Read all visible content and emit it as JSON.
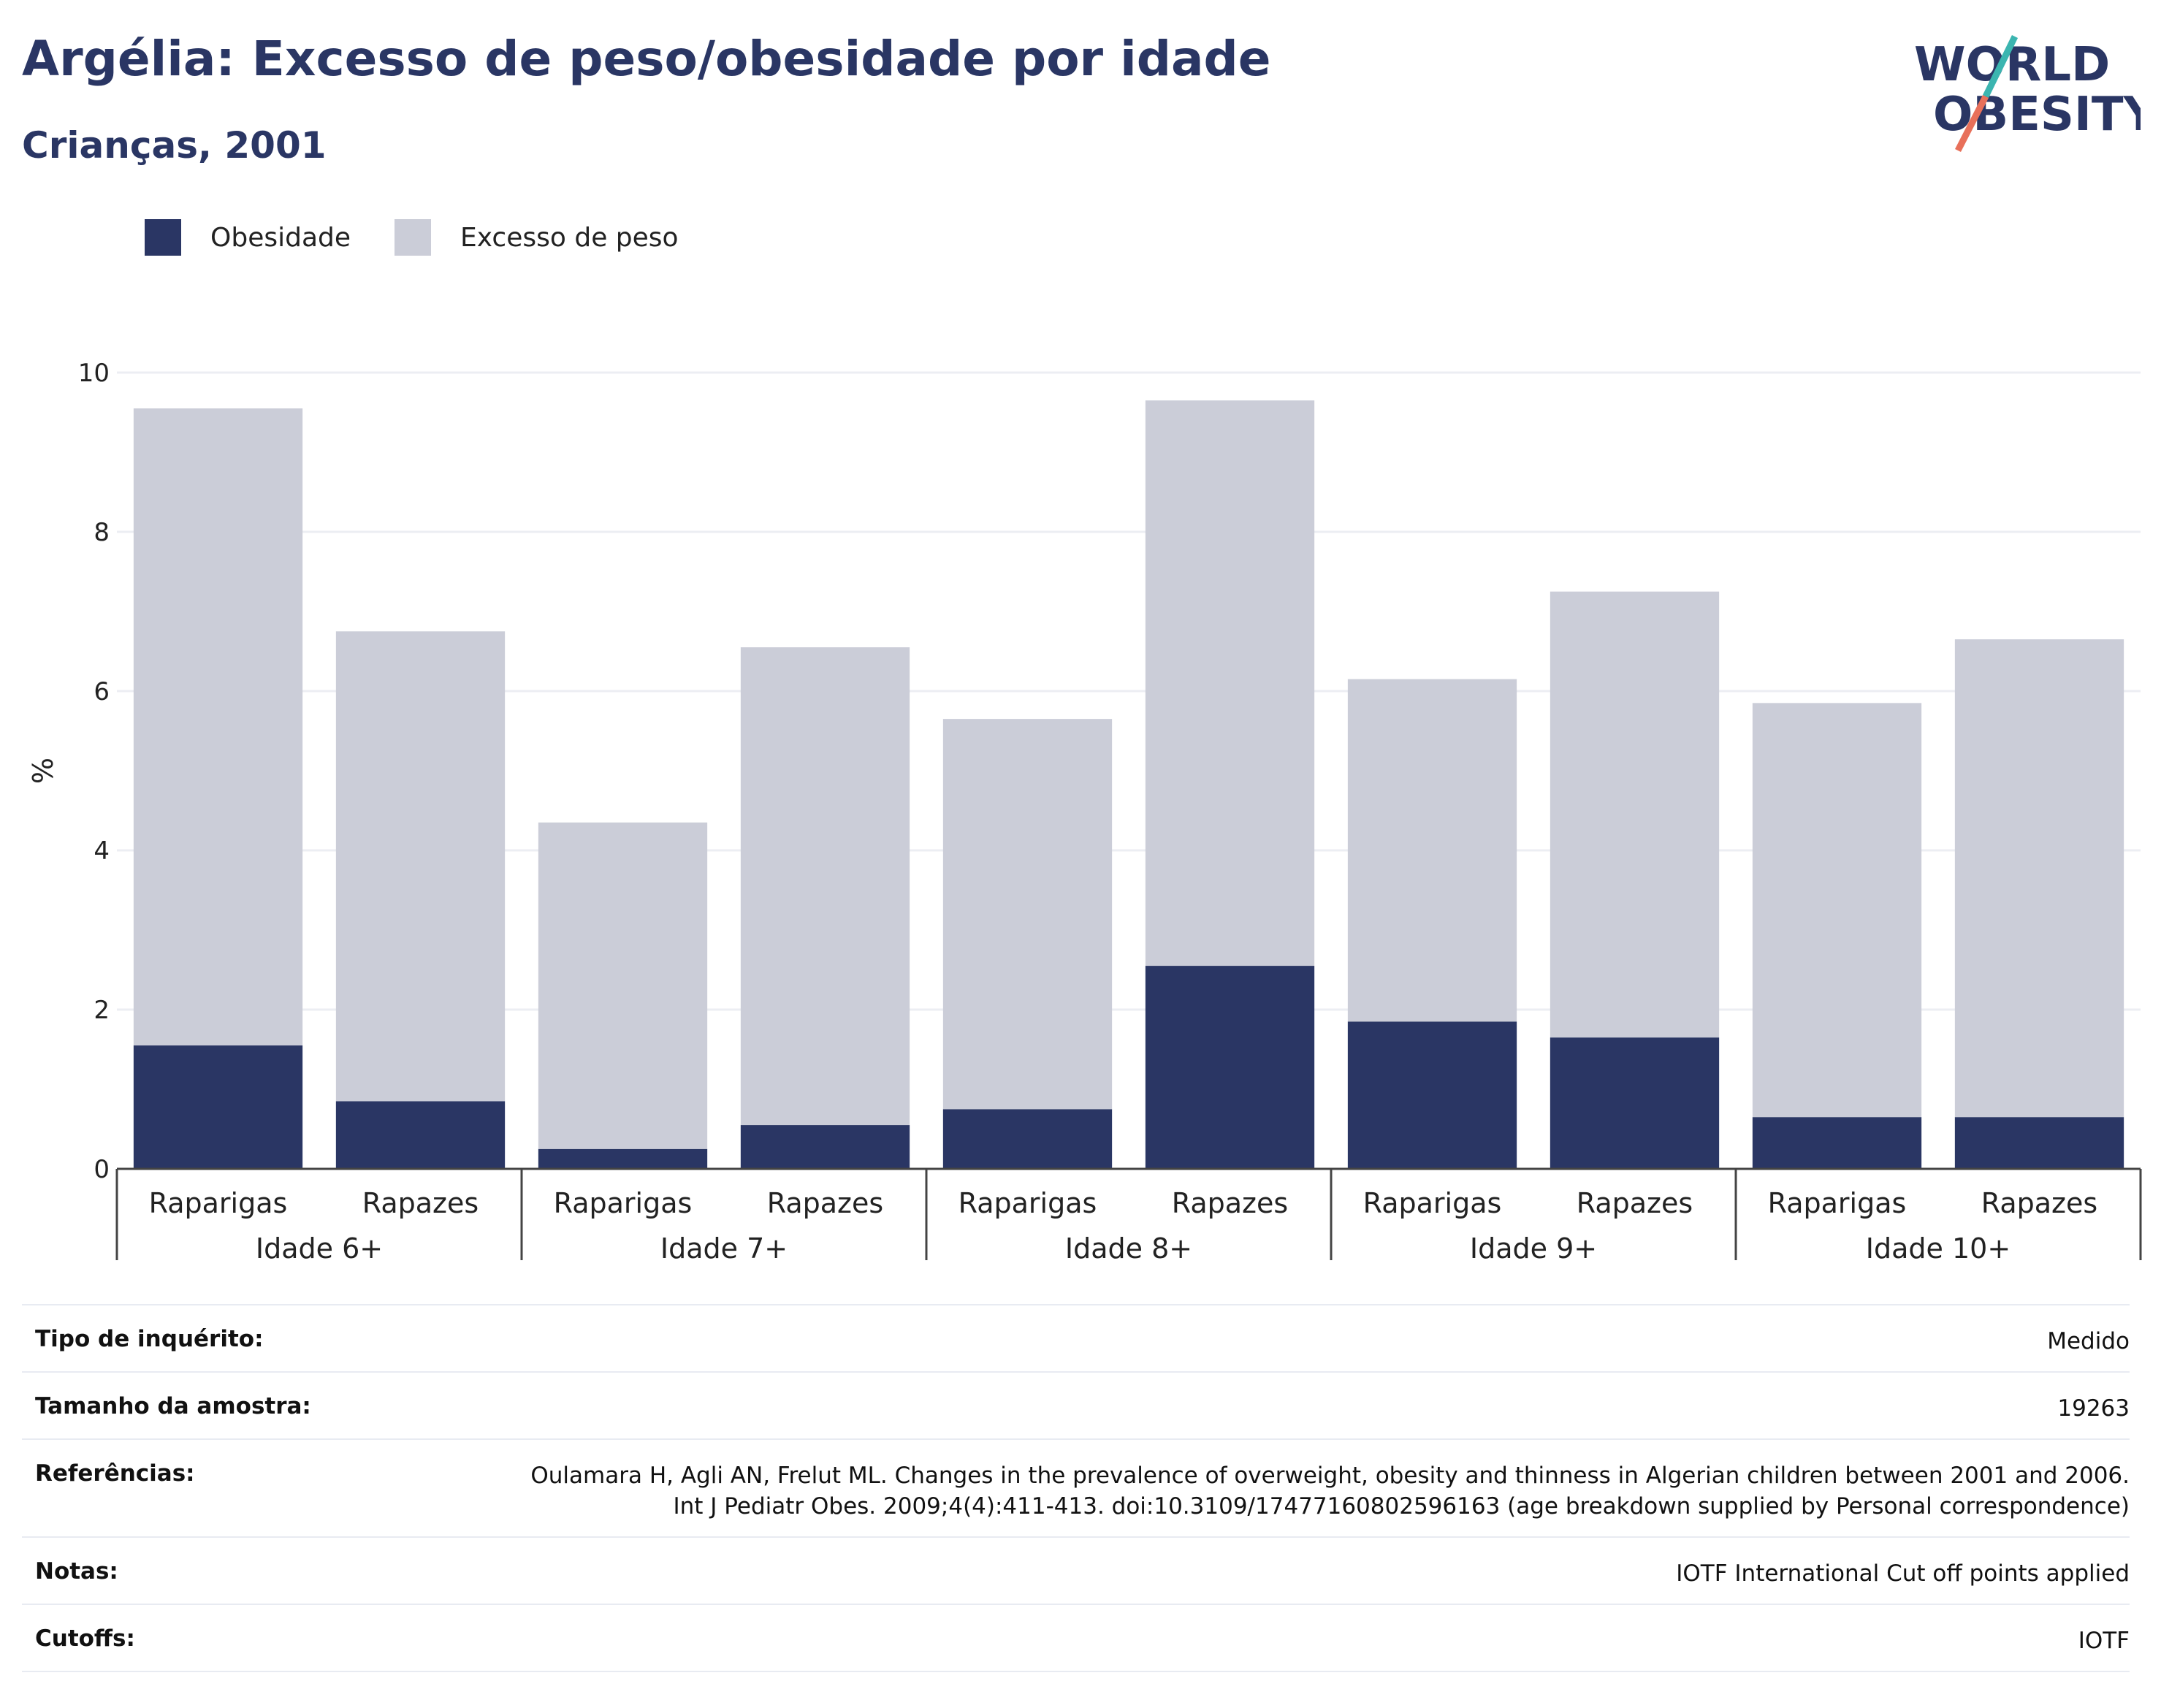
{
  "header": {
    "title": "Argélia: Excesso de peso/obesidade por idade",
    "subtitle": "Crianças, 2001"
  },
  "logo": {
    "line1": "WORLD",
    "line2": "OBESITY",
    "icon": "world-obesity-logo",
    "accent1": "#3bb5b0",
    "accent2": "#e8705a"
  },
  "legend": [
    {
      "label": "Obesidade",
      "color": "#2a3664"
    },
    {
      "label": "Excesso de peso",
      "color": "#cbcdd8"
    }
  ],
  "chart_data": {
    "type": "bar",
    "stacked": true,
    "ylabel": "%",
    "ylim": [
      0,
      10
    ],
    "yticks": [
      0,
      2,
      4,
      6,
      8,
      10
    ],
    "groups": [
      "Idade 6+",
      "Idade 7+",
      "Idade 8+",
      "Idade 9+",
      "Idade 10+"
    ],
    "categories": [
      "Raparigas",
      "Rapazes",
      "Raparigas",
      "Rapazes",
      "Raparigas",
      "Rapazes",
      "Raparigas",
      "Rapazes",
      "Raparigas",
      "Rapazes"
    ],
    "series": [
      {
        "name": "Obesidade",
        "color": "#2a3664",
        "values": [
          1.55,
          0.85,
          0.25,
          0.55,
          0.75,
          2.55,
          1.85,
          1.65,
          0.65,
          0.65
        ]
      },
      {
        "name": "Excesso de peso",
        "color": "#cbcdd8",
        "values": [
          8.0,
          5.9,
          4.1,
          6.0,
          4.9,
          7.1,
          4.3,
          5.6,
          5.2,
          6.0
        ]
      }
    ],
    "grid": true
  },
  "meta": [
    {
      "key": "Tipo de inquérito:",
      "value": "Medido"
    },
    {
      "key": "Tamanho da amostra:",
      "value": "19263"
    },
    {
      "key": "Referências:",
      "value": "Oulamara H, Agli AN, Frelut ML. Changes in the prevalence of overweight, obesity and thinness in Algerian children between 2001 and 2006. Int J Pediatr Obes. 2009;4(4):411-413. doi:10.3109/17477160802596163 (age breakdown supplied by Personal correspondence)"
    },
    {
      "key": "Notas:",
      "value": "IOTF International Cut off points applied"
    },
    {
      "key": "Cutoffs:",
      "value": "IOTF"
    }
  ]
}
